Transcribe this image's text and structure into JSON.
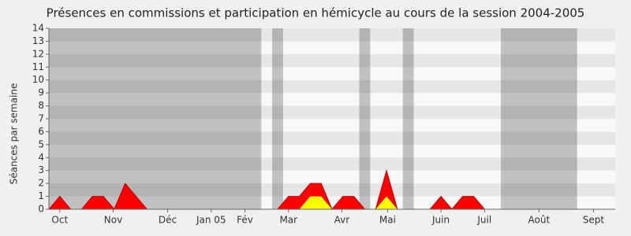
{
  "chart_data": {
    "type": "stacked-area",
    "title": "Présences en commissions et participation en hémicycle au cours de la session 2004-2005",
    "y_label": "Séances par semaine",
    "x": [
      0,
      1,
      2,
      3,
      4,
      5,
      6,
      7,
      8,
      9,
      10,
      11,
      12,
      13,
      14,
      15,
      16,
      17,
      18,
      19,
      20,
      21,
      22,
      23,
      24,
      25,
      26,
      27,
      28,
      29,
      30,
      31,
      32,
      33,
      34,
      35,
      36,
      37,
      38,
      39,
      40,
      41,
      42,
      43,
      44,
      45,
      46,
      47,
      48,
      49,
      50,
      51,
      52
    ],
    "xlim": [
      0,
      52
    ],
    "xticks": [
      {
        "value": 1,
        "label": "Oct"
      },
      {
        "value": 5.9,
        "label": "Nov"
      },
      {
        "value": 10.9,
        "label": "Déc"
      },
      {
        "value": 14.9,
        "label": "Jan 05"
      },
      {
        "value": 18,
        "label": "Fév"
      },
      {
        "value": 22,
        "label": "Mar"
      },
      {
        "value": 26.9,
        "label": "Avr"
      },
      {
        "value": 31.1,
        "label": "Mai"
      },
      {
        "value": 36,
        "label": "Juin"
      },
      {
        "value": 40,
        "label": "Juil"
      },
      {
        "value": 45,
        "label": "Août"
      },
      {
        "value": 50,
        "label": "Sept"
      }
    ],
    "ylim": [
      0,
      14
    ],
    "yticks": [
      0,
      1,
      2,
      3,
      4,
      5,
      6,
      7,
      8,
      9,
      10,
      11,
      12,
      13,
      14
    ],
    "shaded_weeks": [
      [
        0,
        19.5
      ],
      [
        20.5,
        21.5
      ],
      [
        28.5,
        29.5
      ],
      [
        32.5,
        33.5
      ],
      [
        41.5,
        48.5
      ]
    ],
    "series": [
      {
        "color": "#00c000",
        "values": [
          0,
          0,
          0,
          0,
          0,
          0,
          0,
          0,
          0,
          0,
          0,
          0,
          0,
          0,
          0,
          0,
          0,
          0,
          0,
          0,
          0,
          0,
          0,
          0,
          0,
          0,
          0,
          0,
          0,
          0,
          0,
          0,
          0,
          0,
          0,
          0,
          0,
          0,
          0,
          0,
          0,
          0,
          0,
          0,
          0,
          0,
          0,
          0,
          0,
          0,
          0,
          0,
          0
        ]
      },
      {
        "color": "#ffff00",
        "values": [
          0,
          0,
          0,
          0,
          0,
          0,
          0,
          0,
          0,
          0,
          0,
          0,
          0,
          0,
          0,
          0,
          0,
          0,
          0,
          0,
          0,
          0,
          0,
          0,
          1,
          1,
          0,
          0,
          0,
          0,
          0,
          1,
          0,
          0,
          0,
          0,
          0,
          0,
          0,
          0,
          0,
          0,
          0,
          0,
          0,
          0,
          0,
          0,
          0,
          0,
          0,
          0,
          0
        ]
      },
      {
        "color": "#ff0000",
        "values": [
          0,
          1,
          0,
          0,
          1,
          1,
          0,
          2,
          1,
          0,
          0,
          0,
          0,
          0,
          0,
          0,
          0,
          0,
          0,
          0,
          0,
          0,
          1,
          1,
          1,
          1,
          0,
          1,
          1,
          0,
          0,
          2,
          0,
          0,
          0,
          0,
          1,
          0,
          1,
          1,
          0,
          0,
          0,
          0,
          0,
          0,
          0,
          0,
          0,
          0,
          0,
          0,
          0
        ]
      }
    ]
  }
}
